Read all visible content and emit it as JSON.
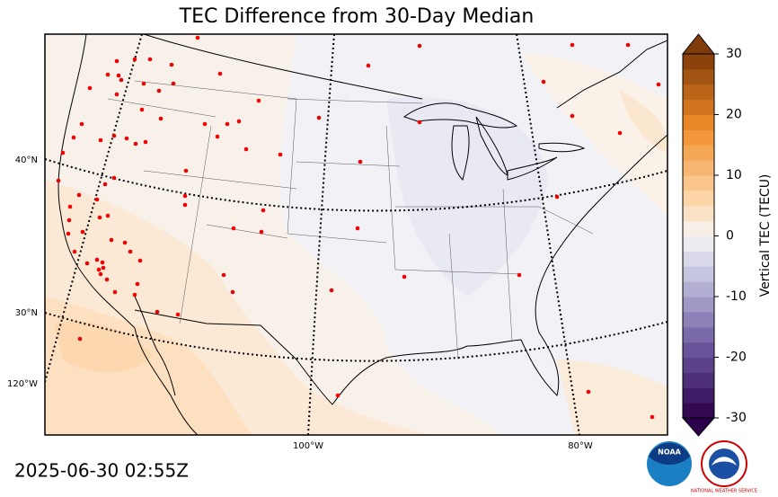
{
  "title": "TEC Difference from 30-Day Median",
  "timestamp": "2025-06-30 02:55Z",
  "map": {
    "lat_labels": [
      "40°N",
      "30°N"
    ],
    "lon_labels": [
      "120°W",
      "100°W",
      "80°W"
    ]
  },
  "colorbar": {
    "label": "Vertical TEC (TECU)",
    "lim": [
      -30,
      30
    ],
    "ticks": [
      -30,
      -20,
      -10,
      0,
      10,
      20,
      30
    ]
  },
  "logos": [
    "NOAA",
    "NATIONAL WEATHER SERVICE"
  ]
}
